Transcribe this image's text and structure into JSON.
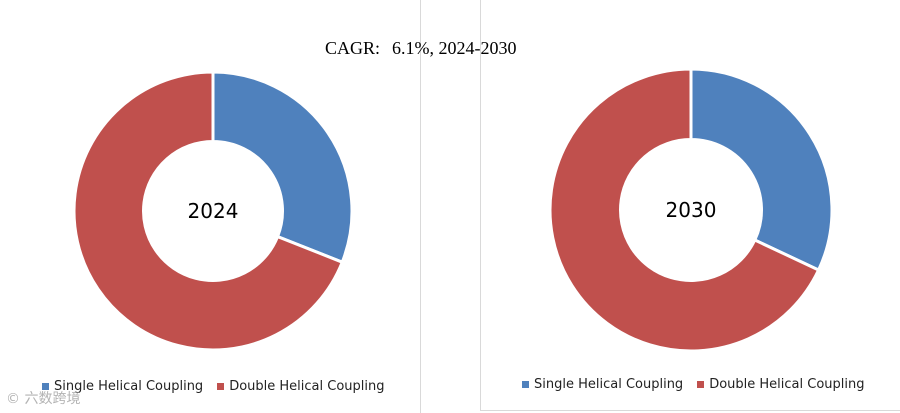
{
  "header": {
    "cagr_label": "CAGR:",
    "cagr_value": "6.1%, 2024-2030"
  },
  "chart_data": [
    {
      "type": "pie",
      "title": "2024",
      "categories": [
        "Single Helical Coupling",
        "Double Helical Coupling"
      ],
      "values": [
        31,
        69
      ],
      "colors": [
        "#4f81bd",
        "#c0504d"
      ],
      "legend_position": "bottom",
      "legend": [
        "Single Helical Coupling",
        "Double Helical Coupling"
      ]
    },
    {
      "type": "pie",
      "title": "2030",
      "categories": [
        "Single Helical Coupling",
        "Double Helical Coupling"
      ],
      "values": [
        32,
        68
      ],
      "colors": [
        "#4f81bd",
        "#c0504d"
      ],
      "legend_position": "bottom",
      "legend": [
        "Single Helical Coupling",
        "Double Helical Coupling"
      ]
    }
  ],
  "watermark": "© 六数跨境"
}
